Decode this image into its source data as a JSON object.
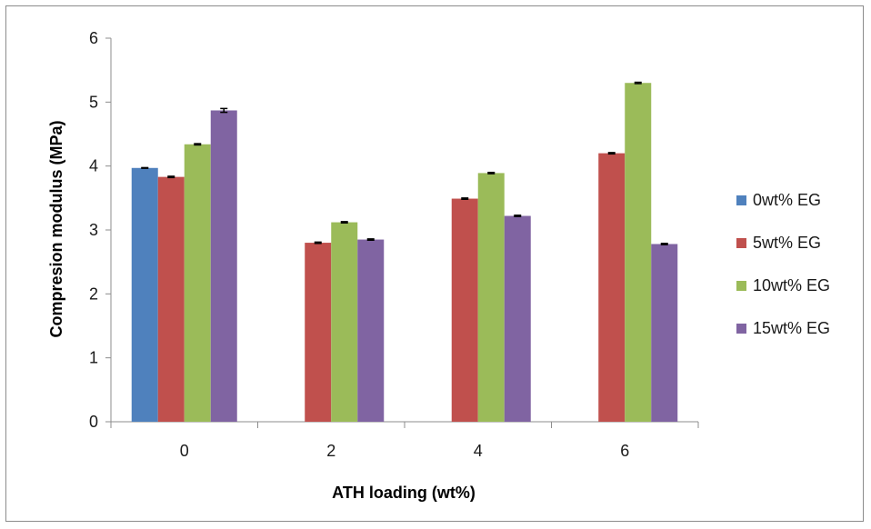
{
  "chart_data": {
    "type": "bar",
    "xlabel": "ATH loading (wt%)",
    "ylabel": "Compresion modulus (MPa)",
    "categories": [
      "0",
      "2",
      "4",
      "6"
    ],
    "ylim": [
      0,
      6
    ],
    "yticks": [
      "0",
      "1",
      "2",
      "3",
      "4",
      "5",
      "6"
    ],
    "grid": false,
    "legend_position": "right",
    "series": [
      {
        "name": "0wt% EG",
        "color": "#4f81bd",
        "values": [
          3.97,
          null,
          null,
          null
        ],
        "errors": [
          0.005,
          null,
          null,
          null
        ]
      },
      {
        "name": "5wt% EG",
        "color": "#c0504d",
        "values": [
          3.83,
          2.8,
          3.49,
          4.2
        ],
        "errors": [
          0.01,
          0.01,
          0.01,
          0.01
        ]
      },
      {
        "name": "10wt% EG",
        "color": "#9bbb59",
        "values": [
          4.34,
          3.12,
          3.89,
          5.3
        ],
        "errors": [
          0.01,
          0.01,
          0.01,
          0.01
        ]
      },
      {
        "name": "15wt% EG",
        "color": "#8064a2",
        "values": [
          4.87,
          2.85,
          3.22,
          2.78
        ],
        "errors": [
          0.03,
          0.01,
          0.01,
          0.01
        ]
      }
    ]
  }
}
